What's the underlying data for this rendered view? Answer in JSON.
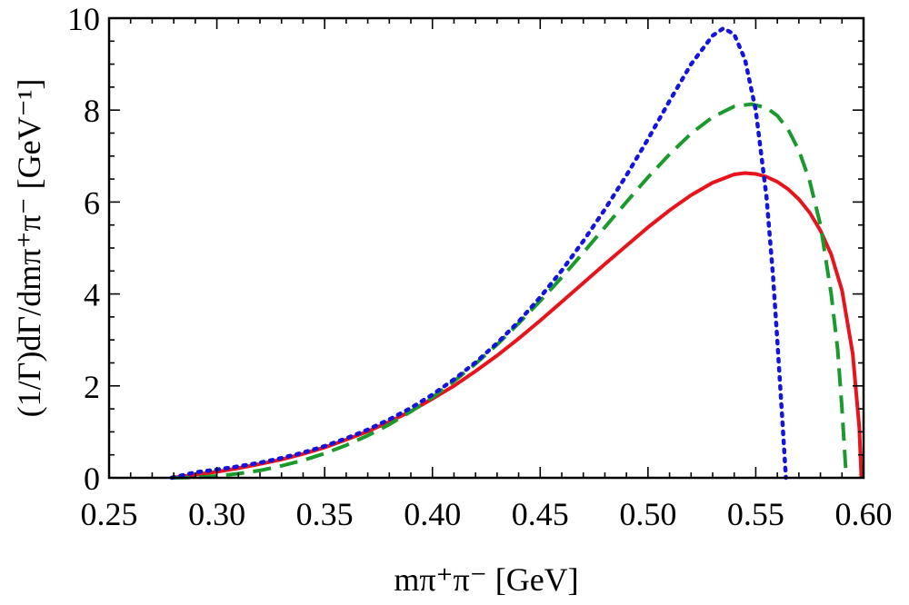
{
  "chart_data": {
    "type": "line",
    "xlabel": "mπ⁺π⁻ [GeV]",
    "ylabel": "(1/Γ)dΓ/dmπ⁺π⁻ [GeV⁻¹]",
    "xlim": [
      0.25,
      0.6
    ],
    "ylim": [
      0,
      10
    ],
    "xticks": [
      "0.25",
      "0.30",
      "0.35",
      "0.40",
      "0.45",
      "0.50",
      "0.55",
      "0.60"
    ],
    "yticks": [
      "0",
      "2",
      "4",
      "6",
      "8",
      "10"
    ],
    "grid": false,
    "legend": "none",
    "series": [
      {
        "style": "solid",
        "color": "#e8141c",
        "x": [
          0.279,
          0.29,
          0.3,
          0.31,
          0.32,
          0.33,
          0.34,
          0.35,
          0.36,
          0.37,
          0.38,
          0.39,
          0.4,
          0.41,
          0.42,
          0.43,
          0.44,
          0.45,
          0.46,
          0.47,
          0.48,
          0.49,
          0.5,
          0.51,
          0.52,
          0.53,
          0.54,
          0.545,
          0.55,
          0.555,
          0.56,
          0.565,
          0.57,
          0.575,
          0.58,
          0.585,
          0.59,
          0.595,
          0.598,
          0.599
        ],
        "y": [
          0.0,
          0.07,
          0.13,
          0.21,
          0.3,
          0.4,
          0.52,
          0.66,
          0.83,
          1.01,
          1.22,
          1.45,
          1.72,
          2.0,
          2.32,
          2.66,
          3.03,
          3.42,
          3.83,
          4.24,
          4.65,
          5.05,
          5.45,
          5.82,
          6.15,
          6.42,
          6.6,
          6.63,
          6.61,
          6.55,
          6.44,
          6.28,
          6.06,
          5.77,
          5.38,
          4.86,
          4.08,
          2.7,
          1.1,
          0.0
        ]
      },
      {
        "style": "dashed",
        "color": "#1a9a2c",
        "x": [
          0.279,
          0.29,
          0.3,
          0.31,
          0.32,
          0.33,
          0.34,
          0.35,
          0.36,
          0.37,
          0.38,
          0.39,
          0.4,
          0.41,
          0.42,
          0.43,
          0.44,
          0.45,
          0.46,
          0.47,
          0.48,
          0.49,
          0.5,
          0.51,
          0.52,
          0.53,
          0.54,
          0.548,
          0.555,
          0.56,
          0.565,
          0.57,
          0.575,
          0.58,
          0.585,
          0.588,
          0.59,
          0.592
        ],
        "y": [
          0.0,
          0.01,
          0.04,
          0.09,
          0.16,
          0.26,
          0.38,
          0.53,
          0.71,
          0.92,
          1.16,
          1.44,
          1.75,
          2.1,
          2.48,
          2.9,
          3.36,
          3.85,
          4.36,
          4.9,
          5.45,
          6.0,
          6.54,
          7.04,
          7.49,
          7.85,
          8.08,
          8.13,
          8.05,
          7.88,
          7.58,
          7.12,
          6.46,
          5.5,
          4.0,
          2.8,
          1.5,
          0.0
        ]
      },
      {
        "style": "dotted",
        "color": "#1414e0",
        "x": [
          0.279,
          0.29,
          0.3,
          0.31,
          0.32,
          0.33,
          0.34,
          0.35,
          0.36,
          0.37,
          0.38,
          0.39,
          0.4,
          0.41,
          0.42,
          0.43,
          0.44,
          0.45,
          0.46,
          0.47,
          0.48,
          0.49,
          0.5,
          0.51,
          0.52,
          0.53,
          0.535,
          0.54,
          0.545,
          0.55,
          0.555,
          0.558,
          0.56,
          0.562,
          0.564
        ],
        "y": [
          0.0,
          0.12,
          0.18,
          0.25,
          0.33,
          0.43,
          0.55,
          0.69,
          0.86,
          1.05,
          1.27,
          1.52,
          1.81,
          2.14,
          2.51,
          2.93,
          3.4,
          3.93,
          4.51,
          5.15,
          5.84,
          6.58,
          7.37,
          8.2,
          9.0,
          9.62,
          9.78,
          9.65,
          9.1,
          8.0,
          6.1,
          4.4,
          3.0,
          1.5,
          0.0
        ]
      }
    ]
  }
}
